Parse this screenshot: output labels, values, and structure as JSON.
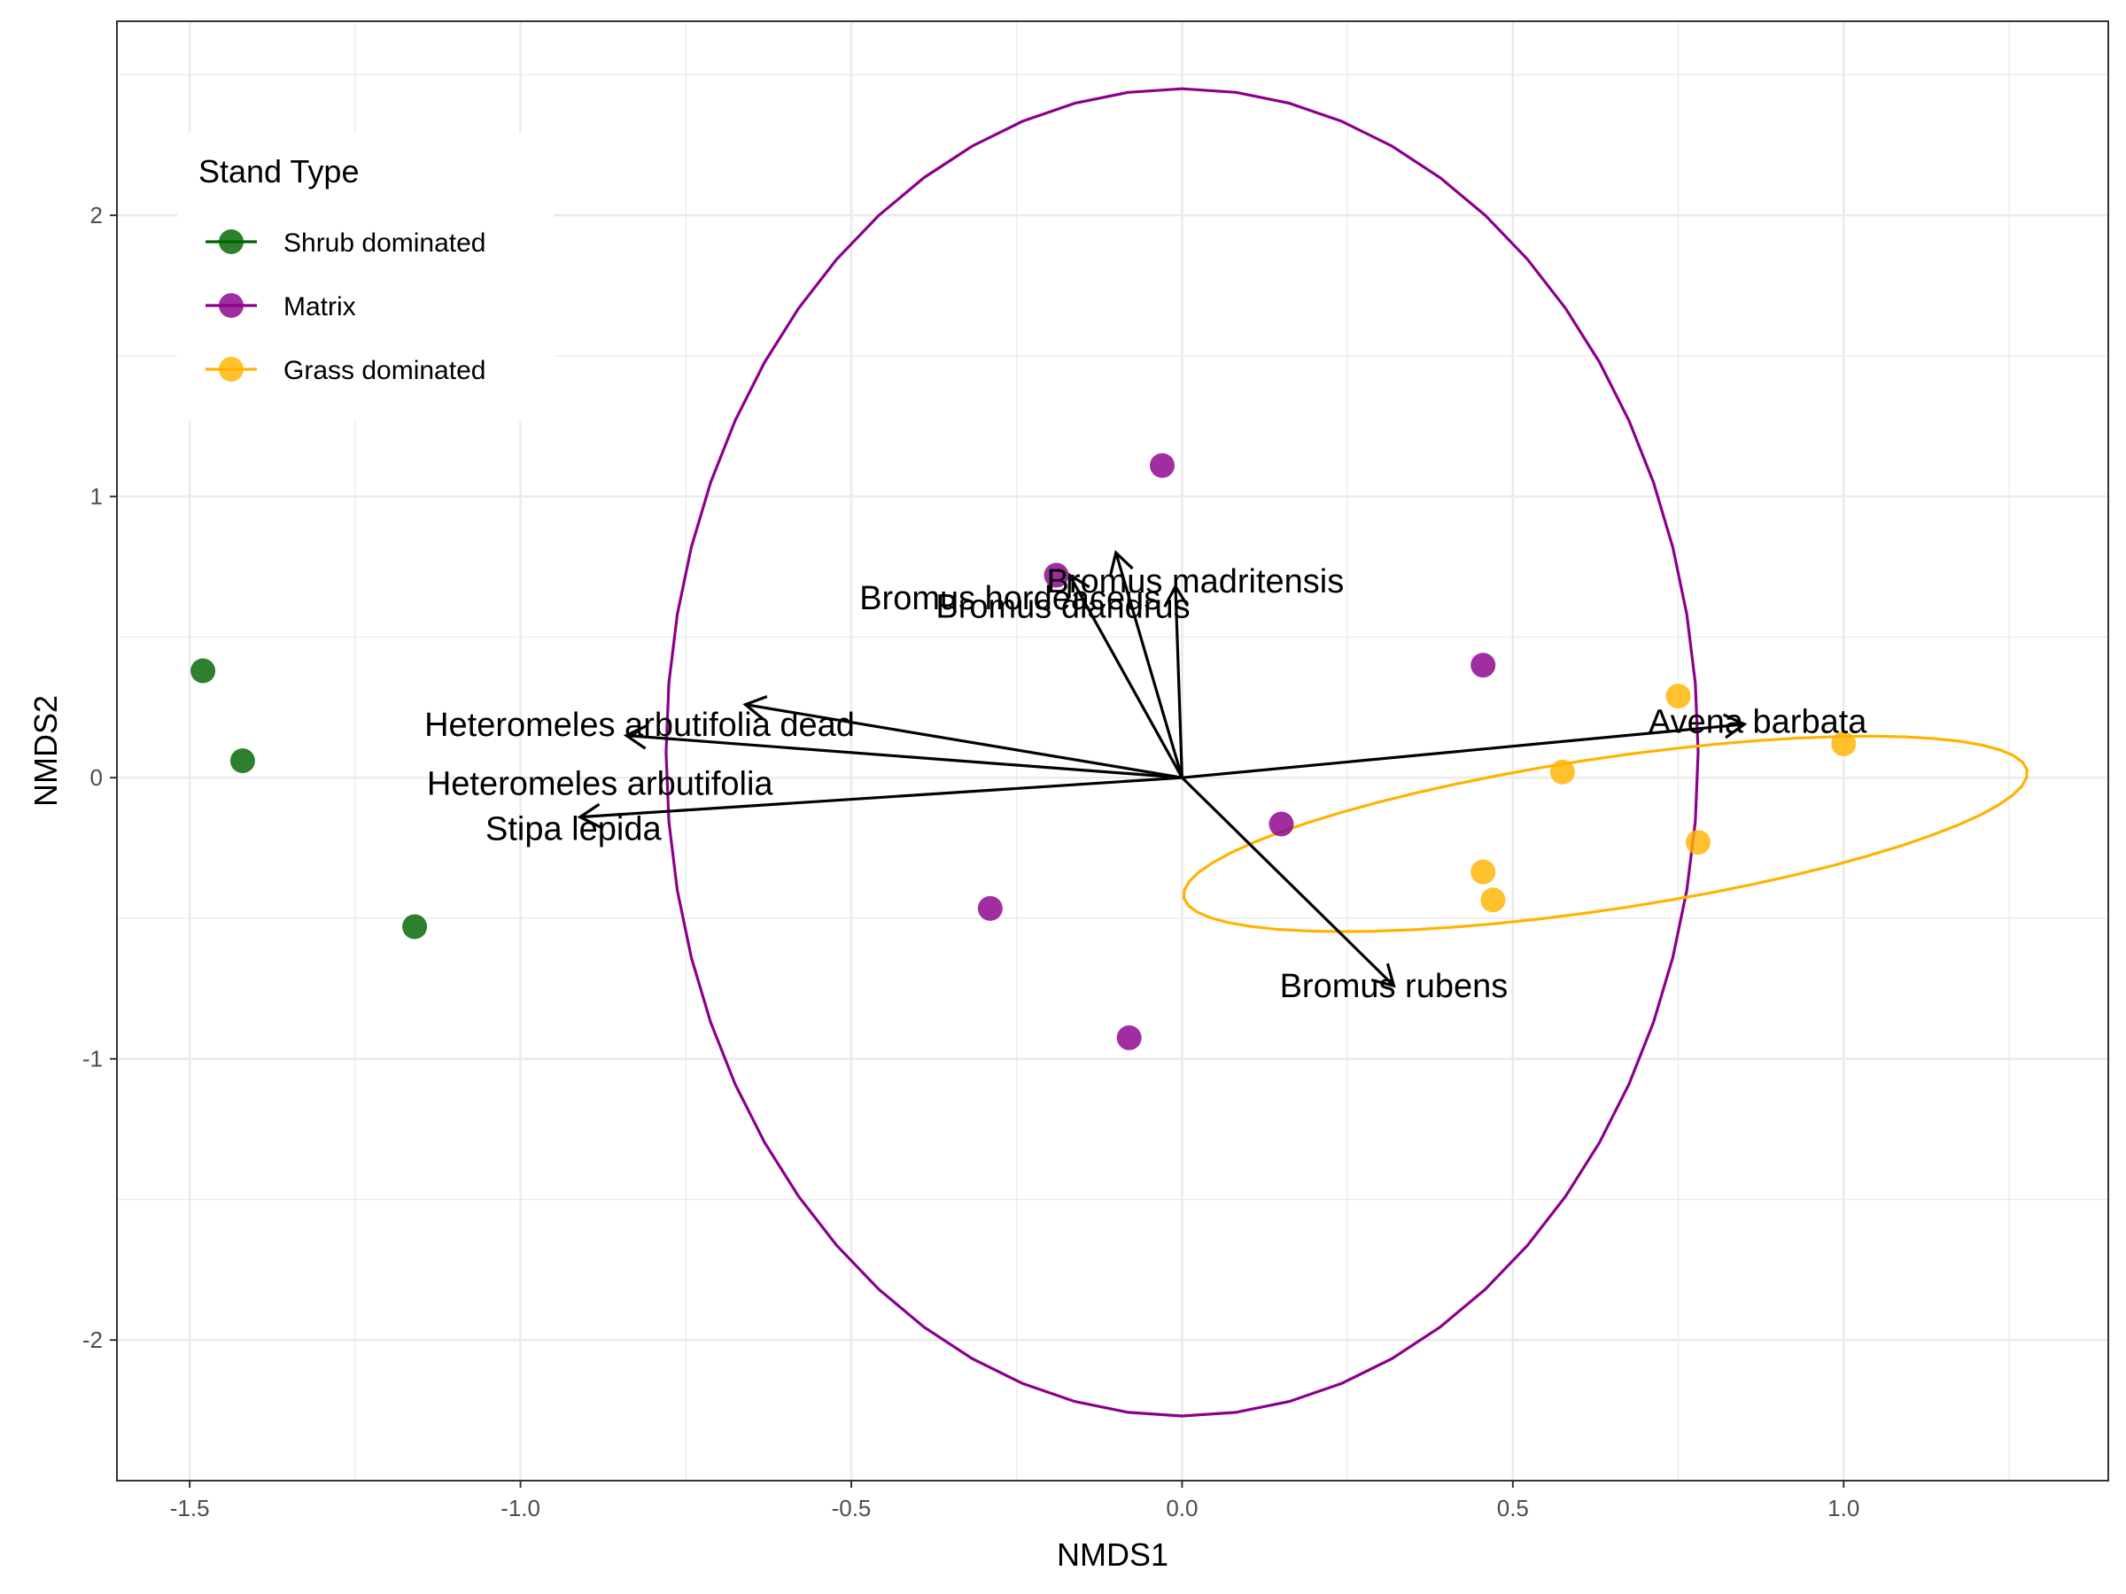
{
  "chart_data": {
    "type": "scatter",
    "xlabel": "NMDS1",
    "ylabel": "NMDS2",
    "xlim": [
      -1.61,
      1.4
    ],
    "ylim": [
      -2.5,
      2.69
    ],
    "x_ticks": [
      -1.5,
      -1.0,
      -0.5,
      0.0,
      0.5,
      1.0
    ],
    "x_tick_labels": [
      "-1.5",
      "-1.0",
      "-0.5",
      "0.0",
      "0.5",
      "1.0"
    ],
    "y_ticks": [
      -2,
      -1,
      0,
      1,
      2
    ],
    "y_tick_labels": [
      "-2",
      "-1",
      "0",
      "1",
      "2"
    ],
    "grid": true,
    "legend": {
      "title": "Stand Type",
      "position": "top-left",
      "entries": [
        "Shrub dominated",
        "Matrix",
        "Grass dominated"
      ]
    },
    "series": [
      {
        "name": "Shrub dominated",
        "color": "#006400",
        "points": [
          {
            "x": -1.48,
            "y": 0.38
          },
          {
            "x": -1.42,
            "y": 0.06
          },
          {
            "x": -1.16,
            "y": -0.53
          }
        ],
        "ellipse": null
      },
      {
        "name": "Matrix",
        "color": "#8B008B",
        "points": [
          {
            "x": -0.03,
            "y": 1.11
          },
          {
            "x": -0.19,
            "y": 0.72
          },
          {
            "x": 0.455,
            "y": 0.4
          },
          {
            "x": 0.15,
            "y": -0.165
          },
          {
            "x": -0.29,
            "y": -0.465
          },
          {
            "x": -0.08,
            "y": -0.925
          }
        ],
        "ellipse": {
          "cx": 0.0,
          "cy": 0.09,
          "rx": 0.78,
          "ry": 2.36,
          "angle_deg": 0
        }
      },
      {
        "name": "Grass dominated",
        "color": "#FFB300",
        "points": [
          {
            "x": 0.75,
            "y": 0.29
          },
          {
            "x": 1.0,
            "y": 0.12
          },
          {
            "x": 0.575,
            "y": 0.02
          },
          {
            "x": 0.78,
            "y": -0.23
          },
          {
            "x": 0.455,
            "y": -0.335
          },
          {
            "x": 0.47,
            "y": -0.435
          }
        ],
        "ellipse": {
          "cx": 0.64,
          "cy": -0.2,
          "rx": 0.68,
          "ry": 0.255,
          "angle_deg": 22
        }
      }
    ],
    "vectors": [
      {
        "label": "Bromus madritensis",
        "x": -0.1,
        "y": 0.8,
        "label_x": 0.02,
        "label_y": 0.7
      },
      {
        "label": "Bromus hordeaceus",
        "x": -0.17,
        "y": 0.72,
        "label_x": -0.26,
        "label_y": 0.64
      },
      {
        "label": "Bromus diandrus",
        "x": -0.01,
        "y": 0.68,
        "label_x": -0.18,
        "label_y": 0.61
      },
      {
        "label": "Heteromeles arbutifolia dead",
        "x": -0.66,
        "y": 0.26,
        "label_x": -0.82,
        "label_y": 0.19
      },
      {
        "label": "Heteromeles arbutifolia",
        "x": -0.84,
        "y": 0.15,
        "label_x": -0.88,
        "label_y": -0.02
      },
      {
        "label": "Stipa lepida",
        "x": -0.91,
        "y": -0.14,
        "label_x": -0.92,
        "label_y": -0.18
      },
      {
        "label": "Avena barbata",
        "x": 0.85,
        "y": 0.19,
        "label_x": 0.87,
        "label_y": 0.2
      },
      {
        "label": "Bromus rubens",
        "x": 0.32,
        "y": -0.74,
        "label_x": 0.32,
        "label_y": -0.74
      }
    ]
  }
}
